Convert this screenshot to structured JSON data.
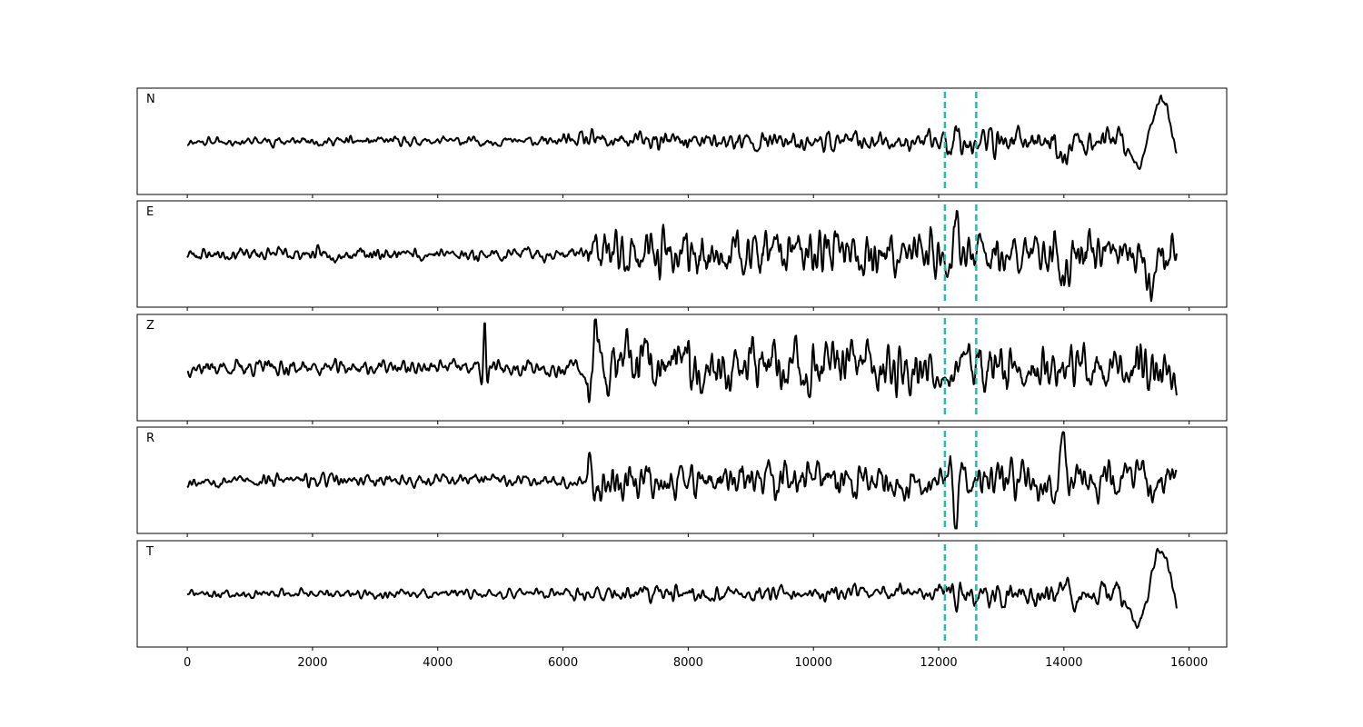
{
  "chart_data": {
    "type": "line",
    "title": "",
    "xlabel": "",
    "ylabel": "",
    "xlim": [
      -800,
      16600
    ],
    "x_ticks": [
      0,
      2000,
      4000,
      6000,
      8000,
      10000,
      12000,
      14000,
      16000
    ],
    "x_tick_labels": [
      "0",
      "2000",
      "4000",
      "6000",
      "8000",
      "10000",
      "12000",
      "14000",
      "16000"
    ],
    "x_range_data": [
      0,
      15800
    ],
    "n_samples": 1400,
    "grid": false,
    "legend": "none",
    "colors": {
      "trace": "#000000",
      "marker": "#1cbfb0"
    },
    "markers": [
      12100,
      12600
    ],
    "panels": [
      {
        "label": "N",
        "seed": 11,
        "segments": [
          {
            "from": 0,
            "to": 6000,
            "amp": 0.07
          },
          {
            "from": 6000,
            "to": 12000,
            "amp": 0.14
          },
          {
            "from": 12000,
            "to": 15000,
            "amp": 0.22
          },
          {
            "from": 15000,
            "to": 15800,
            "amp": 0.1
          }
        ],
        "events": [
          {
            "t": 12300,
            "amp": 0.55,
            "width": 25,
            "period": 110
          },
          {
            "t": 14000,
            "amp": -0.42,
            "width": 50,
            "period": 300
          },
          {
            "t": 15550,
            "amp": 0.95,
            "width": 180,
            "period": 420
          }
        ]
      },
      {
        "label": "E",
        "seed": 23,
        "segments": [
          {
            "from": 0,
            "to": 6400,
            "amp": 0.1
          },
          {
            "from": 6400,
            "to": 12000,
            "amp": 0.35
          },
          {
            "from": 12000,
            "to": 15800,
            "amp": 0.33
          }
        ],
        "events": [
          {
            "t": 12280,
            "amp": 1.0,
            "width": 35,
            "period": 110
          },
          {
            "t": 14000,
            "amp": -0.65,
            "width": 60,
            "period": 240
          },
          {
            "t": 15400,
            "amp": -0.5,
            "width": 80,
            "period": 300
          }
        ]
      },
      {
        "label": "Z",
        "seed": 37,
        "segments": [
          {
            "from": 0,
            "to": 6400,
            "amp": 0.12
          },
          {
            "from": 6400,
            "to": 10000,
            "amp": 0.45
          },
          {
            "from": 10000,
            "to": 15800,
            "amp": 0.4
          }
        ],
        "events": [
          {
            "t": 4750,
            "amp": 0.92,
            "width": 20,
            "period": 55
          },
          {
            "t": 6550,
            "amp": 0.85,
            "width": 60,
            "period": 200
          }
        ]
      },
      {
        "label": "R",
        "seed": 53,
        "segments": [
          {
            "from": 0,
            "to": 6400,
            "amp": 0.1
          },
          {
            "from": 6400,
            "to": 15800,
            "amp": 0.3
          }
        ],
        "events": [
          {
            "t": 12280,
            "amp": -0.95,
            "width": 35,
            "period": 120
          },
          {
            "t": 14000,
            "amp": 0.75,
            "width": 45,
            "period": 160
          },
          {
            "t": 6550,
            "amp": -0.45,
            "width": 40,
            "period": 150
          }
        ]
      },
      {
        "label": "T",
        "seed": 71,
        "segments": [
          {
            "from": 0,
            "to": 6000,
            "amp": 0.07
          },
          {
            "from": 6000,
            "to": 12000,
            "amp": 0.12
          },
          {
            "from": 12000,
            "to": 15000,
            "amp": 0.18
          },
          {
            "from": 15000,
            "to": 15800,
            "amp": 0.1
          }
        ],
        "events": [
          {
            "t": 12280,
            "amp": -0.4,
            "width": 25,
            "period": 110
          },
          {
            "t": 14000,
            "amp": 0.35,
            "width": 40,
            "period": 200
          },
          {
            "t": 15550,
            "amp": 1.0,
            "width": 200,
            "period": 420
          }
        ]
      }
    ]
  }
}
